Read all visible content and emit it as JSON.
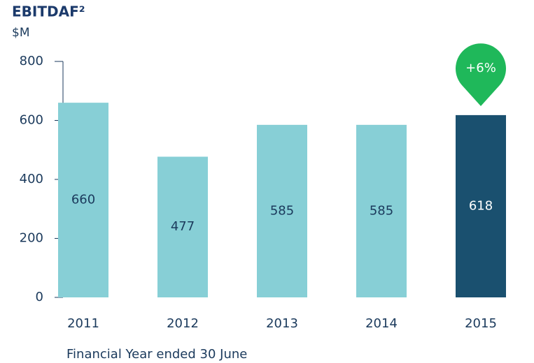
{
  "chart_data": {
    "type": "bar",
    "title": "EBITDAF²",
    "y_label": "$M",
    "x_label": "Financial Year ended 30 June",
    "categories": [
      "2011",
      "2012",
      "2013",
      "2014",
      "2015"
    ],
    "values": [
      660,
      477,
      585,
      585,
      618
    ],
    "colors": [
      "#87cfd6",
      "#87cfd6",
      "#87cfd6",
      "#87cfd6",
      "#1a506f"
    ],
    "ylim": [
      0,
      800
    ],
    "yticks": [
      0,
      200,
      400,
      600,
      800
    ],
    "annotation": "+6%",
    "annotation_color": "#1fb85a"
  }
}
